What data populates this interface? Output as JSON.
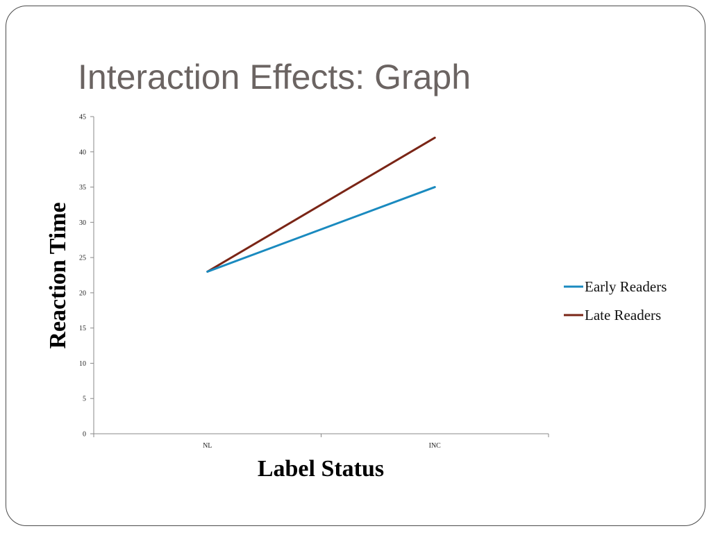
{
  "slide": {
    "title": "Interaction Effects: Graph"
  },
  "chart_data": {
    "type": "line",
    "categories": [
      "NL",
      "INC"
    ],
    "series": [
      {
        "name": "Early Readers",
        "values": [
          23,
          35
        ],
        "color": "#1a8abf"
      },
      {
        "name": "Late Readers",
        "values": [
          23,
          42
        ],
        "color": "#7a2516"
      }
    ],
    "xlabel": "Label Status",
    "ylabel": "Reaction Time",
    "ylim": [
      0,
      45
    ],
    "yticks": [
      0,
      5,
      10,
      15,
      20,
      25,
      30,
      35,
      40,
      45
    ],
    "grid": false,
    "legend_position": "right"
  }
}
